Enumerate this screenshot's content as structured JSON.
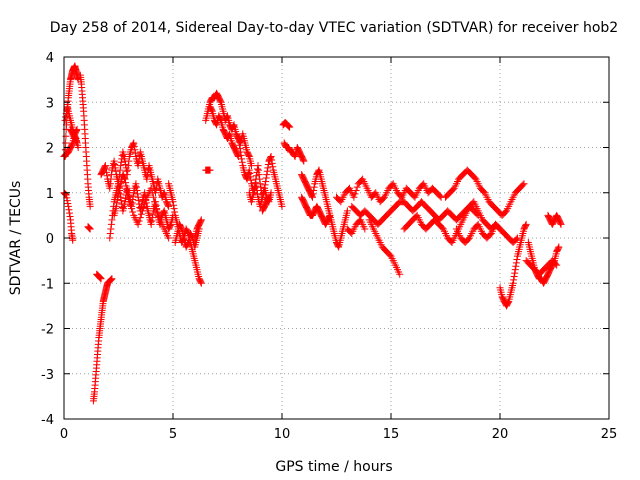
{
  "chart_data": {
    "type": "scatter",
    "title": "Day 258 of 2014, Sidereal Day-to-day VTEC variation (SDTVAR) for receiver hob2",
    "xlabel": "GPS time / hours",
    "ylabel": "SDTVAR / TECUs",
    "xlim": [
      0,
      25
    ],
    "ylim": [
      -4,
      4
    ],
    "xticks": [
      0,
      5,
      10,
      15,
      20,
      25
    ],
    "yticks": [
      -4,
      -3,
      -2,
      -1,
      0,
      1,
      2,
      3,
      4
    ],
    "grid": true,
    "marker": "plus",
    "color": "#ff0000",
    "series": [
      {
        "name": "seg1",
        "x": [
          0,
          0.1,
          0.2,
          0.3,
          0.35,
          0.4
        ],
        "y": [
          1.0,
          0.95,
          0.7,
          0.4,
          0.1,
          -0.05
        ]
      },
      {
        "name": "seg2",
        "x": [
          0.05,
          0.1,
          0.15,
          0.2,
          0.25,
          0.3,
          0.35,
          0.4,
          0.45,
          0.5,
          0.55,
          0.6,
          0.65
        ],
        "y": [
          1.8,
          2.4,
          2.8,
          3.1,
          3.3,
          3.5,
          3.6,
          3.7,
          3.75,
          3.8,
          3.7,
          3.6,
          3.5
        ]
      },
      {
        "name": "seg3",
        "x": [
          0.05,
          0.15,
          0.25,
          0.35,
          0.45,
          0.55,
          0.65
        ],
        "y": [
          2.6,
          2.9,
          2.7,
          2.5,
          2.3,
          2.2,
          2.0
        ]
      },
      {
        "name": "seg4",
        "x": [
          0.0,
          0.1,
          0.2,
          0.3,
          0.4,
          0.5,
          0.6
        ],
        "y": [
          1.8,
          1.85,
          1.9,
          2.0,
          2.1,
          2.3,
          2.4
        ]
      },
      {
        "name": "seg5",
        "x": [
          0.75,
          0.8,
          0.85,
          0.9,
          0.95,
          1.0,
          1.05,
          1.1,
          1.15,
          1.2
        ],
        "y": [
          3.6,
          3.4,
          3.1,
          2.8,
          2.4,
          2.0,
          1.6,
          1.2,
          0.9,
          0.7
        ]
      },
      {
        "name": "seg6",
        "x": [
          1.35,
          1.4,
          1.45,
          1.5,
          1.55,
          1.6,
          1.65,
          1.7,
          1.75,
          1.8,
          1.85,
          1.9,
          1.95,
          2.0,
          2.1,
          2.2
        ],
        "y": [
          -3.6,
          -3.4,
          -3.1,
          -2.8,
          -2.5,
          -2.2,
          -2.0,
          -1.8,
          -1.6,
          -1.4,
          -1.3,
          -1.2,
          -1.1,
          -1.0,
          -0.95,
          -0.9
        ]
      },
      {
        "name": "seg7",
        "x": [
          1.5,
          1.6,
          1.7
        ],
        "y": [
          -0.8,
          -0.85,
          -0.9
        ]
      },
      {
        "name": "seg8",
        "x": [
          1.7,
          1.8,
          1.9,
          2.0,
          2.1,
          2.2,
          2.3,
          2.4,
          2.5,
          2.6,
          2.7,
          2.8,
          2.9,
          3.0,
          3.1,
          3.2,
          3.3,
          3.4,
          3.5,
          3.6,
          3.7,
          3.8,
          3.9,
          4.0,
          4.1,
          4.2,
          4.3,
          4.4,
          4.5,
          4.6,
          4.7,
          4.8
        ],
        "y": [
          1.4,
          1.5,
          1.6,
          1.3,
          1.1,
          1.5,
          1.7,
          1.4,
          1.2,
          1.6,
          1.9,
          1.7,
          1.4,
          1.8,
          2.0,
          2.1,
          1.8,
          1.6,
          1.9,
          1.7,
          1.5,
          1.3,
          1.6,
          1.4,
          1.2,
          1.0,
          1.3,
          1.1,
          0.9,
          1.0,
          0.8,
          0.7
        ]
      },
      {
        "name": "seg9",
        "x": [
          2.1,
          2.2,
          2.3,
          2.4,
          2.5,
          2.6,
          2.7,
          2.8,
          2.9,
          3.0,
          3.1,
          3.2,
          3.3,
          3.4,
          3.5,
          3.6,
          3.7,
          3.8,
          3.9,
          4.0,
          4.1,
          4.2,
          4.3,
          4.4,
          4.5,
          4.6,
          4.7,
          4.8,
          4.9,
          5.0
        ],
        "y": [
          0.0,
          0.4,
          0.8,
          1.0,
          1.2,
          0.9,
          0.6,
          0.8,
          1.1,
          0.9,
          0.7,
          1.0,
          1.2,
          0.9,
          0.6,
          0.8,
          1.0,
          0.7,
          0.5,
          0.3,
          0.6,
          0.8,
          0.5,
          0.3,
          0.5,
          0.6,
          0.4,
          0.2,
          0.3,
          0.5
        ]
      },
      {
        "name": "seg10",
        "x": [
          2.3,
          2.4,
          2.5,
          2.6,
          2.7,
          2.8,
          2.9,
          3.0,
          3.2,
          3.4,
          3.6,
          3.8,
          4.0,
          4.2,
          4.4,
          4.6,
          4.8
        ],
        "y": [
          0.5,
          0.7,
          1.0,
          1.2,
          1.4,
          1.3,
          1.0,
          0.8,
          0.5,
          0.3,
          0.6,
          0.9,
          1.1,
          0.7,
          0.4,
          0.2,
          0.0
        ]
      },
      {
        "name": "seg11",
        "x": [
          4.8,
          4.9,
          5.0,
          5.1,
          5.2,
          5.3,
          5.4,
          5.5,
          5.6,
          5.7,
          5.8,
          5.9,
          6.0,
          6.1,
          6.2,
          6.3
        ],
        "y": [
          1.2,
          1.0,
          0.8,
          0.5,
          0.3,
          0.1,
          -0.1,
          0.0,
          0.2,
          0.1,
          -0.1,
          -0.3,
          -0.5,
          -0.7,
          -0.9,
          -1.0
        ]
      },
      {
        "name": "seg12",
        "x": [
          5.1,
          5.2,
          5.3,
          5.4,
          5.5,
          5.6,
          5.7,
          5.8,
          5.9,
          6.0,
          6.1,
          6.2
        ],
        "y": [
          -0.1,
          0.1,
          0.3,
          0.2,
          0.0,
          -0.2,
          -0.1,
          0.1,
          0.0,
          -0.2,
          0.0,
          0.2
        ]
      },
      {
        "name": "seg13",
        "x": [
          6.0,
          6.1,
          6.2,
          6.3
        ],
        "y": [
          0.0,
          0.2,
          0.3,
          0.4
        ]
      },
      {
        "name": "seg14",
        "x": [
          6.5,
          6.6,
          6.7,
          6.8,
          6.9,
          7.0,
          7.1,
          7.2,
          7.3,
          7.4,
          7.5,
          7.6,
          7.7,
          7.8,
          7.9,
          8.0,
          8.1,
          8.2,
          8.3,
          8.4,
          8.5,
          8.6
        ],
        "y": [
          2.6,
          2.8,
          3.0,
          3.1,
          3.1,
          3.2,
          3.1,
          3.0,
          2.8,
          2.6,
          2.7,
          2.5,
          2.4,
          2.5,
          2.3,
          2.2,
          2.1,
          2.3,
          2.1,
          1.9,
          1.8,
          1.6
        ]
      },
      {
        "name": "seg15",
        "x": [
          6.7,
          6.8,
          6.9,
          7.0,
          7.1,
          7.2,
          7.3,
          7.4,
          7.5,
          7.6,
          7.7,
          7.8,
          7.9,
          8.0
        ],
        "y": [
          2.9,
          2.8,
          2.6,
          2.5,
          2.7,
          2.6,
          2.4,
          2.3,
          2.2,
          2.3,
          2.1,
          2.0,
          1.9,
          1.8
        ]
      },
      {
        "name": "seg16",
        "x": [
          6.5,
          6.6,
          6.7
        ],
        "y": [
          1.5,
          1.5,
          1.5
        ]
      },
      {
        "name": "seg17",
        "x": [
          8.0,
          8.1,
          8.2,
          8.3,
          8.4,
          8.5,
          8.6,
          8.7,
          8.8,
          8.9,
          9.0,
          9.1,
          9.2,
          9.3,
          9.4,
          9.5,
          9.6,
          9.7,
          9.8,
          9.9,
          10.0
        ],
        "y": [
          2.2,
          1.9,
          1.6,
          1.4,
          1.3,
          1.5,
          1.2,
          1.0,
          1.3,
          1.6,
          1.2,
          0.9,
          1.1,
          1.4,
          1.7,
          1.8,
          1.5,
          1.3,
          1.1,
          0.9,
          0.7
        ]
      },
      {
        "name": "seg18",
        "x": [
          8.5,
          8.6,
          8.7,
          8.8,
          8.9,
          9.0,
          9.1,
          9.2,
          9.3,
          9.4,
          9.5
        ],
        "y": [
          1.0,
          0.8,
          1.0,
          1.2,
          0.9,
          0.7,
          0.9,
          1.1,
          0.9,
          0.8,
          1.0
        ]
      },
      {
        "name": "seg19",
        "x": [
          9.1,
          9.2,
          9.3,
          9.4
        ],
        "y": [
          0.6,
          0.7,
          0.8,
          0.9
        ]
      },
      {
        "name": "seg20",
        "x": [
          10.05,
          10.15,
          10.25,
          10.35
        ],
        "y": [
          2.5,
          2.55,
          2.5,
          2.45
        ]
      },
      {
        "name": "seg21",
        "x": [
          10.1,
          10.2,
          10.3,
          10.4,
          10.5,
          10.6,
          10.7,
          10.8,
          10.9,
          11.0
        ],
        "y": [
          2.1,
          2.0,
          2.0,
          1.9,
          1.9,
          1.8,
          2.0,
          1.9,
          1.8,
          1.7
        ]
      },
      {
        "name": "seg22",
        "x": [
          10.9,
          11.0,
          11.1,
          11.2,
          11.3,
          11.4,
          11.5,
          11.6,
          11.7,
          11.8,
          11.9,
          12.0,
          12.1,
          12.2,
          12.3,
          12.4,
          12.5,
          12.6,
          12.7,
          12.8,
          12.9,
          13.0
        ],
        "y": [
          1.4,
          1.3,
          1.2,
          1.1,
          1.0,
          0.9,
          1.2,
          1.4,
          1.5,
          1.3,
          1.1,
          0.9,
          0.7,
          0.5,
          0.3,
          0.1,
          -0.1,
          -0.2,
          0.0,
          0.2,
          0.4,
          0.6
        ]
      },
      {
        "name": "seg23",
        "x": [
          10.9,
          11.0,
          11.1,
          11.2,
          11.3,
          11.4,
          11.5,
          11.6,
          11.7,
          11.8,
          11.9,
          12.0,
          12.1,
          12.2
        ],
        "y": [
          0.9,
          0.8,
          0.7,
          0.6,
          0.5,
          0.5,
          0.6,
          0.7,
          0.6,
          0.5,
          0.4,
          0.3,
          0.4,
          0.5
        ]
      },
      {
        "name": "seg24",
        "x": [
          12.5,
          12.7,
          12.9,
          13.1,
          13.3,
          13.5,
          13.7,
          13.9,
          14.1,
          14.3,
          14.5,
          14.7,
          14.9,
          15.1,
          15.3,
          15.5,
          15.7,
          15.9,
          16.1,
          16.3,
          16.5,
          16.7,
          16.9,
          17.1,
          17.3
        ],
        "y": [
          0.9,
          0.8,
          1.0,
          1.1,
          0.9,
          1.2,
          1.3,
          1.1,
          0.9,
          1.0,
          0.8,
          0.9,
          1.1,
          1.2,
          1.0,
          0.9,
          1.1,
          1.0,
          0.9,
          1.1,
          1.2,
          1.0,
          1.1,
          1.0,
          0.9
        ]
      },
      {
        "name": "seg25",
        "x": [
          13.2,
          13.4,
          13.6,
          13.8,
          14.0,
          14.2,
          14.4,
          14.6,
          14.8,
          15.0,
          15.2,
          15.4,
          15.6,
          15.8,
          16.0,
          16.2,
          16.4,
          16.6,
          16.8,
          17.0,
          17.2,
          17.4,
          17.6,
          17.8,
          18.0,
          18.2,
          18.4,
          18.6,
          18.8,
          19.0
        ],
        "y": [
          0.7,
          0.6,
          0.5,
          0.6,
          0.5,
          0.4,
          0.3,
          0.4,
          0.5,
          0.6,
          0.7,
          0.8,
          0.8,
          0.7,
          0.6,
          0.7,
          0.8,
          0.7,
          0.6,
          0.5,
          0.4,
          0.5,
          0.6,
          0.5,
          0.4,
          0.5,
          0.6,
          0.7,
          0.6,
          0.5
        ]
      },
      {
        "name": "seg26",
        "x": [
          14.0,
          14.2,
          14.4,
          14.6,
          14.8,
          15.0,
          15.2,
          15.4
        ],
        "y": [
          0.4,
          0.2,
          0.0,
          -0.2,
          -0.3,
          -0.4,
          -0.6,
          -0.8
        ]
      },
      {
        "name": "seg27",
        "x": [
          13.0,
          13.2,
          13.4,
          13.6,
          13.8
        ],
        "y": [
          0.2,
          0.1,
          0.3,
          0.4,
          0.2
        ]
      },
      {
        "name": "seg28",
        "x": [
          15.6,
          15.8,
          16.0,
          16.2,
          16.4,
          16.6,
          16.8,
          17.0,
          17.2,
          17.4,
          17.6,
          17.8,
          18.0,
          18.2,
          18.4,
          18.6,
          18.8,
          19.0,
          19.2,
          19.4,
          19.6,
          19.8,
          20.0,
          20.2,
          20.4,
          20.6,
          20.8
        ],
        "y": [
          0.2,
          0.3,
          0.4,
          0.5,
          0.3,
          0.2,
          0.3,
          0.4,
          0.3,
          0.2,
          0.0,
          -0.1,
          0.1,
          0.3,
          0.5,
          0.7,
          0.8,
          0.6,
          0.4,
          0.3,
          0.2,
          0.3,
          0.2,
          0.1,
          0.0,
          -0.1,
          0.0
        ]
      },
      {
        "name": "seg29",
        "x": [
          17.5,
          17.7,
          17.9,
          18.1,
          18.3,
          18.5,
          18.7,
          18.9,
          19.1,
          19.3,
          19.5,
          19.7,
          19.9,
          20.1,
          20.3,
          20.5,
          20.7,
          20.9,
          21.1
        ],
        "y": [
          0.9,
          1.0,
          1.1,
          1.3,
          1.4,
          1.5,
          1.4,
          1.3,
          1.1,
          1.0,
          0.8,
          0.7,
          0.6,
          0.5,
          0.6,
          0.8,
          1.0,
          1.1,
          1.2
        ]
      },
      {
        "name": "seg30",
        "x": [
          18.0,
          18.2,
          18.4,
          18.6,
          18.8,
          19.0,
          19.2,
          19.4,
          19.6,
          19.8,
          20.0
        ],
        "y": [
          0.2,
          0.0,
          -0.1,
          0.0,
          0.2,
          0.3,
          0.1,
          0.0,
          0.1,
          0.3,
          0.2
        ]
      },
      {
        "name": "seg31",
        "x": [
          20.0,
          20.1,
          20.2,
          20.3,
          20.4,
          20.5,
          20.6,
          20.7,
          20.8,
          20.9,
          21.0,
          21.1,
          21.2
        ],
        "y": [
          -1.1,
          -1.3,
          -1.4,
          -1.5,
          -1.4,
          -1.2,
          -1.0,
          -0.7,
          -0.4,
          -0.2,
          0.0,
          0.2,
          0.3
        ]
      },
      {
        "name": "seg32",
        "x": [
          21.3,
          21.4,
          21.5,
          21.6,
          21.7,
          21.8,
          21.9,
          22.0,
          22.1,
          22.2,
          22.3,
          22.4,
          22.5,
          22.6,
          22.7
        ],
        "y": [
          -0.1,
          -0.3,
          -0.5,
          -0.7,
          -0.8,
          -0.9,
          -0.9,
          -1.0,
          -0.9,
          -0.8,
          -0.7,
          -0.6,
          -0.5,
          -0.3,
          -0.2
        ]
      },
      {
        "name": "seg33",
        "x": [
          21.2,
          21.4,
          21.6,
          21.8,
          22.0,
          22.2,
          22.4,
          22.6
        ],
        "y": [
          -0.5,
          -0.6,
          -0.7,
          -0.8,
          -0.7,
          -0.6,
          -0.5,
          -0.6
        ]
      },
      {
        "name": "seg34",
        "x": [
          22.2,
          22.3,
          22.4,
          22.5,
          22.6,
          22.7,
          22.8
        ],
        "y": [
          0.5,
          0.4,
          0.3,
          0.4,
          0.5,
          0.4,
          0.3
        ]
      },
      {
        "name": "seg35",
        "x": [
          1.1,
          1.2
        ],
        "y": [
          0.25,
          0.2
        ]
      },
      {
        "name": "seg36",
        "x": [
          0.3,
          0.4,
          0.5,
          0.6
        ],
        "y": [
          2.4,
          2.3,
          2.2,
          2.1
        ]
      }
    ]
  }
}
